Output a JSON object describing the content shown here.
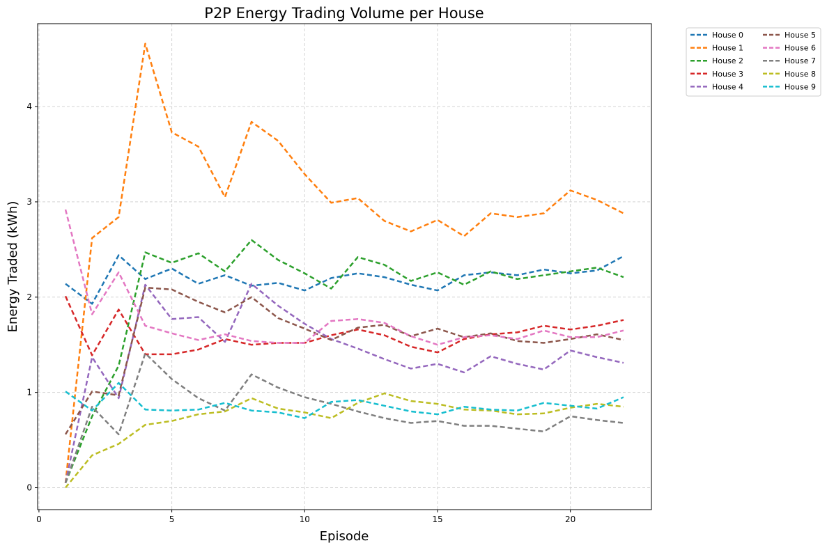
{
  "chart_data": {
    "type": "line",
    "title": "P2P Energy Trading Volume per House",
    "xlabel": "Episode",
    "ylabel": "Energy Traded (kWh)",
    "xlim": [
      -0.05,
      23.05
    ],
    "ylim": [
      -0.23,
      4.87
    ],
    "xticks": [
      0,
      5,
      10,
      15,
      20
    ],
    "yticks": [
      0,
      1,
      2,
      3,
      4
    ],
    "grid": true,
    "line_style": "dashed",
    "legend_position": "outside-top-right",
    "legend_columns": 2,
    "x": [
      1,
      2,
      3,
      4,
      5,
      6,
      7,
      8,
      9,
      10,
      11,
      12,
      13,
      14,
      15,
      16,
      17,
      18,
      19,
      20,
      21,
      22
    ],
    "series": [
      {
        "name": "House 0",
        "color": "#1f77b4",
        "values": [
          2.14,
          1.93,
          2.44,
          2.19,
          2.3,
          2.14,
          2.23,
          2.12,
          2.15,
          2.07,
          2.2,
          2.25,
          2.21,
          2.13,
          2.07,
          2.23,
          2.26,
          2.23,
          2.29,
          2.25,
          2.28,
          2.43
        ]
      },
      {
        "name": "House 1",
        "color": "#ff7f0e",
        "values": [
          0.05,
          2.62,
          2.84,
          4.66,
          3.73,
          3.58,
          3.05,
          3.84,
          3.64,
          3.29,
          2.99,
          3.04,
          2.8,
          2.69,
          2.81,
          2.64,
          2.88,
          2.84,
          2.88,
          3.12,
          3.02,
          2.88
        ]
      },
      {
        "name": "House 2",
        "color": "#2ca02c",
        "values": [
          0.05,
          0.75,
          1.28,
          2.47,
          2.36,
          2.46,
          2.27,
          2.6,
          2.39,
          2.25,
          2.09,
          2.42,
          2.34,
          2.17,
          2.26,
          2.13,
          2.27,
          2.19,
          2.23,
          2.27,
          2.31,
          2.21
        ]
      },
      {
        "name": "House 3",
        "color": "#d62728",
        "values": [
          2.01,
          1.39,
          1.87,
          1.4,
          1.4,
          1.45,
          1.56,
          1.5,
          1.52,
          1.52,
          1.6,
          1.66,
          1.6,
          1.48,
          1.42,
          1.56,
          1.61,
          1.63,
          1.7,
          1.66,
          1.7,
          1.76
        ]
      },
      {
        "name": "House 4",
        "color": "#9467bd",
        "values": [
          0.05,
          1.37,
          0.94,
          2.13,
          1.77,
          1.79,
          1.53,
          2.14,
          1.91,
          1.72,
          1.56,
          1.46,
          1.35,
          1.25,
          1.3,
          1.21,
          1.38,
          1.3,
          1.24,
          1.44,
          1.37,
          1.31
        ]
      },
      {
        "name": "House 5",
        "color": "#8c564b",
        "values": [
          0.56,
          1.01,
          0.97,
          2.1,
          2.08,
          1.95,
          1.84,
          2.0,
          1.78,
          1.67,
          1.55,
          1.68,
          1.71,
          1.59,
          1.67,
          1.58,
          1.62,
          1.54,
          1.52,
          1.56,
          1.61,
          1.55
        ]
      },
      {
        "name": "House 6",
        "color": "#e377c2",
        "values": [
          2.92,
          1.82,
          2.26,
          1.7,
          1.62,
          1.55,
          1.61,
          1.54,
          1.52,
          1.52,
          1.75,
          1.77,
          1.73,
          1.59,
          1.5,
          1.58,
          1.6,
          1.56,
          1.65,
          1.58,
          1.58,
          1.65
        ]
      },
      {
        "name": "House 7",
        "color": "#7f7f7f",
        "values": [
          0.05,
          0.85,
          0.56,
          1.41,
          1.14,
          0.94,
          0.81,
          1.19,
          1.05,
          0.95,
          0.88,
          0.8,
          0.73,
          0.68,
          0.7,
          0.65,
          0.65,
          0.62,
          0.59,
          0.75,
          0.71,
          0.68
        ]
      },
      {
        "name": "House 8",
        "color": "#bcbd22",
        "values": [
          0.0,
          0.34,
          0.46,
          0.66,
          0.7,
          0.77,
          0.8,
          0.94,
          0.83,
          0.79,
          0.73,
          0.89,
          0.99,
          0.91,
          0.88,
          0.82,
          0.81,
          0.77,
          0.78,
          0.84,
          0.88,
          0.85
        ]
      },
      {
        "name": "House 9",
        "color": "#17becf",
        "values": [
          1.01,
          0.81,
          1.1,
          0.82,
          0.81,
          0.82,
          0.89,
          0.81,
          0.79,
          0.73,
          0.9,
          0.92,
          0.86,
          0.8,
          0.77,
          0.85,
          0.82,
          0.81,
          0.89,
          0.86,
          0.83,
          0.95
        ]
      }
    ]
  }
}
